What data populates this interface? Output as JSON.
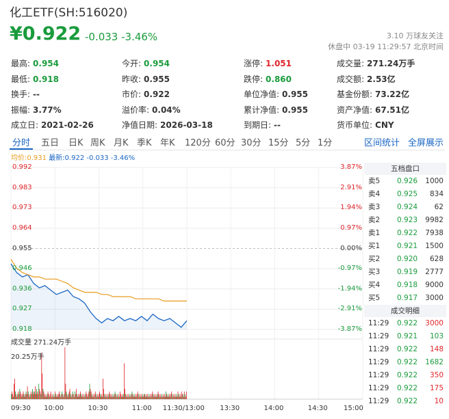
{
  "header": {
    "title": "化工ETF(SH:516020)",
    "price": "¥0.922",
    "change": "-0.033 -3.46%",
    "follow": "3.10 万球友关注",
    "status": "休盘中 03-19 11:29:57 北京时间"
  },
  "quote": [
    [
      {
        "label": "最高:",
        "value": "0.954",
        "color": "green"
      },
      {
        "label": "今开:",
        "value": "0.954",
        "color": "green"
      },
      {
        "label": "涨停:",
        "value": "1.051",
        "color": "red"
      },
      {
        "label": "成交量:",
        "value": "271.24万手",
        "color": ""
      }
    ],
    [
      {
        "label": "最低:",
        "value": "0.918",
        "color": "green"
      },
      {
        "label": "昨收:",
        "value": "0.955",
        "color": ""
      },
      {
        "label": "跌停:",
        "value": "0.860",
        "color": "green"
      },
      {
        "label": "成交额:",
        "value": "2.53亿",
        "color": ""
      }
    ],
    [
      {
        "label": "换手:",
        "value": "--",
        "color": ""
      },
      {
        "label": "市价:",
        "value": "0.922",
        "color": ""
      },
      {
        "label": "单位净值:",
        "value": "0.955",
        "color": ""
      },
      {
        "label": "基金份额:",
        "value": "73.22亿",
        "color": ""
      }
    ],
    [
      {
        "label": "振幅:",
        "value": "3.77%",
        "color": ""
      },
      {
        "label": "溢价率:",
        "value": "0.04%",
        "color": ""
      },
      {
        "label": "累计净值:",
        "value": "0.955",
        "color": ""
      },
      {
        "label": "资产净值:",
        "value": "67.51亿",
        "color": ""
      }
    ],
    [
      {
        "label": "成立日:",
        "value": "2021-02-26",
        "color": ""
      },
      {
        "label": "净值日期:",
        "value": "2026-03-18",
        "color": ""
      },
      {
        "label": "到期日:",
        "value": "--",
        "color": ""
      },
      {
        "label": "货币单位:",
        "value": "CNY",
        "color": ""
      }
    ]
  ],
  "tabs": [
    "分时",
    "五日",
    "日K",
    "周K",
    "月K",
    "季K",
    "年K",
    "120分",
    "60分",
    "30分",
    "15分",
    "5分",
    "1分"
  ],
  "tab_links": [
    "区间统计",
    "全屏展示"
  ],
  "legend": {
    "avg": "均价:0.931",
    "latest": "最新:0.922 -0.033 -3.46%"
  },
  "colors": {
    "green": "#1a9b3c",
    "red": "#e0262b",
    "blue": "#1a66c4",
    "orange": "#e89a1a"
  },
  "chart_data": {
    "type": "line",
    "price_axis": [
      "0.992",
      "0.983",
      "0.973",
      "0.964",
      "0.955",
      "0.946",
      "0.936",
      "0.927",
      "0.918"
    ],
    "pct_axis": [
      "3.87%",
      "2.91%",
      "1.94%",
      "0.97%",
      "0.00%",
      "-0.97%",
      "-1.94%",
      "-2.91%",
      "-3.87%"
    ],
    "x_ticks": [
      "09:30",
      "10:00",
      "10:30",
      "11:00",
      "11:30/13:00",
      "13:30",
      "14:00",
      "14:30",
      "15:00"
    ],
    "ylim": [
      0.918,
      0.992
    ],
    "series": [
      {
        "values": [
          0.948,
          0.944,
          0.942,
          0.943,
          0.939,
          0.937,
          0.938,
          0.936,
          0.934,
          0.935,
          0.936,
          0.933,
          0.932,
          0.93,
          0.926,
          0.923,
          0.921,
          0.923,
          0.922,
          0.924,
          0.922,
          0.923,
          0.922,
          0.924,
          0.922,
          0.925,
          0.923,
          0.922,
          0.923,
          0.921,
          0.919,
          0.922
        ]
      },
      {
        "values": [
          0.95,
          0.946,
          0.944,
          0.943,
          0.942,
          0.942,
          0.941,
          0.941,
          0.941,
          0.94,
          0.939,
          0.937,
          0.936,
          0.935,
          0.935,
          0.935,
          0.934,
          0.934,
          0.933,
          0.933,
          0.933,
          0.933,
          0.932,
          0.932,
          0.932,
          0.932,
          0.932,
          0.931,
          0.931,
          0.931,
          0.931,
          0.931
        ]
      }
    ],
    "volume_total_label": "成交量 271.24万手",
    "volume_max_label": "20.25万手",
    "volume": [
      2,
      3,
      2,
      1,
      6,
      8,
      3,
      2,
      1,
      2,
      3,
      2,
      4,
      3,
      2,
      1,
      2,
      3,
      2,
      1,
      2,
      3,
      2,
      5,
      3,
      2,
      1,
      2,
      3,
      2,
      4,
      3,
      2,
      3,
      5,
      2,
      4,
      3,
      2,
      6,
      4,
      3,
      2,
      18,
      10,
      4,
      3,
      2,
      1,
      2,
      1,
      2,
      3,
      2,
      1,
      2,
      3,
      1,
      2,
      1,
      2,
      1,
      3,
      2,
      1,
      2,
      1,
      2,
      3,
      2,
      1,
      2,
      3,
      2,
      1,
      2,
      20.25,
      6,
      3,
      2,
      1,
      2,
      3,
      4,
      2,
      1,
      2,
      3,
      2,
      1,
      3,
      2,
      4,
      2,
      1,
      2,
      1,
      2,
      3,
      2,
      1,
      2,
      1,
      2,
      1,
      2,
      3,
      2,
      1,
      2,
      3,
      6,
      4,
      3,
      2,
      1,
      2,
      1,
      2,
      3,
      2,
      1,
      2,
      1,
      2,
      3,
      2,
      1,
      2,
      1,
      8,
      4,
      2,
      1,
      2,
      1,
      2,
      1,
      2,
      3,
      2,
      1,
      2,
      1,
      2,
      1,
      2,
      3,
      2,
      1,
      2,
      1,
      2,
      1,
      3,
      2,
      1,
      2,
      1,
      2,
      14,
      4,
      2,
      1,
      2,
      1,
      2,
      1,
      2,
      1,
      2,
      3,
      2,
      1,
      2,
      1,
      2,
      1,
      2,
      3,
      2,
      1,
      2,
      1,
      2,
      1,
      2,
      1,
      2,
      2,
      1,
      2,
      1,
      2,
      1,
      2,
      1,
      2,
      1,
      2,
      3,
      2,
      1,
      2,
      1,
      2,
      1,
      2,
      3,
      2,
      1,
      2,
      1,
      2,
      1,
      2,
      1,
      2,
      1,
      3,
      2,
      1,
      2,
      1,
      2,
      1,
      2,
      3,
      2,
      1,
      2,
      1,
      2,
      1,
      2,
      1,
      3,
      2,
      1,
      2,
      1,
      3,
      2,
      2,
      1,
      3,
      2,
      1,
      3
    ]
  },
  "orderbook": {
    "title": "五档盘口",
    "rows": [
      {
        "label": "卖5",
        "price": "0.926",
        "vol": "1000",
        "color": "green"
      },
      {
        "label": "卖4",
        "price": "0.925",
        "vol": "834",
        "color": "green"
      },
      {
        "label": "卖3",
        "price": "0.924",
        "vol": "62",
        "color": "green"
      },
      {
        "label": "卖2",
        "price": "0.923",
        "vol": "9982",
        "color": "green"
      },
      {
        "label": "卖1",
        "price": "0.922",
        "vol": "7938",
        "color": "green"
      },
      {
        "label": "买1",
        "price": "0.921",
        "vol": "1500",
        "color": "green"
      },
      {
        "label": "买2",
        "price": "0.920",
        "vol": "628",
        "color": "green"
      },
      {
        "label": "买3",
        "price": "0.919",
        "vol": "2777",
        "color": "green"
      },
      {
        "label": "买4",
        "price": "0.918",
        "vol": "9000",
        "color": "green"
      },
      {
        "label": "买5",
        "price": "0.917",
        "vol": "3000",
        "color": "green"
      }
    ]
  },
  "trades": {
    "title": "成交明细",
    "rows": [
      {
        "time": "11:29",
        "price": "0.922",
        "vol": "3000",
        "color": "red"
      },
      {
        "time": "11:29",
        "price": "0.921",
        "vol": "103",
        "color": "green"
      },
      {
        "time": "11:29",
        "price": "0.922",
        "vol": "148",
        "color": "red"
      },
      {
        "time": "11:29",
        "price": "0.922",
        "vol": "1682",
        "color": "green"
      },
      {
        "time": "11:29",
        "price": "0.922",
        "vol": "350",
        "color": "red"
      },
      {
        "time": "11:29",
        "price": "0.922",
        "vol": "175",
        "color": "red"
      },
      {
        "time": "11:29",
        "price": "0.922",
        "vol": "10",
        "color": "red"
      }
    ]
  }
}
